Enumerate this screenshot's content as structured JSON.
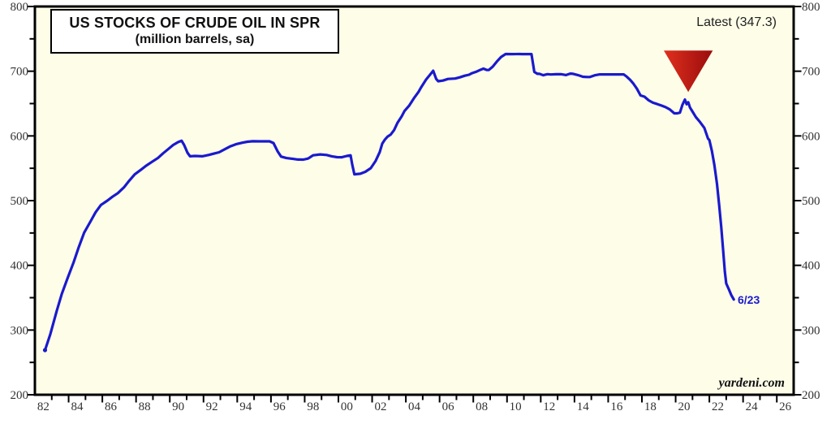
{
  "title": {
    "line1": "US STOCKS OF CRUDE OIL IN SPR",
    "line2": "(million barrels, sa)"
  },
  "annotations": {
    "latest_label": "Latest (347.3)",
    "endpoint_label": "6/23",
    "watermark": "yardeni.com"
  },
  "colors": {
    "line": "#1a1acd",
    "plot_background": "#fefde8",
    "frame": "#000000",
    "tick_label": "#333333",
    "marker_red_light": "#e0301e",
    "marker_red_dark": "#990c0c",
    "endpoint_label_color": "#1a1acd",
    "page_background": "#ffffff"
  },
  "chart_data": {
    "type": "line",
    "title": "US STOCKS OF CRUDE OIL IN SPR",
    "subtitle": "(million barrels, sa)",
    "ylabel": "million barrels",
    "latest_value": 347.3,
    "latest_date": "6/23",
    "x_axis": {
      "start_year": 1982,
      "end_year": 2027,
      "tick_every_years": 1,
      "label_every_years": 2,
      "labels": [
        "82",
        "84",
        "86",
        "88",
        "90",
        "92",
        "94",
        "96",
        "98",
        "00",
        "02",
        "04",
        "06",
        "08",
        "10",
        "12",
        "14",
        "16",
        "18",
        "20",
        "22",
        "24",
        "26"
      ]
    },
    "y_axis": {
      "min": 200,
      "max": 800,
      "major_step": 100,
      "minor_step": 50,
      "labels": [
        "200",
        "300",
        "400",
        "500",
        "600",
        "700",
        "800"
      ],
      "sides": "both"
    },
    "grid": false,
    "legend": false,
    "marker": {
      "type": "triangle-down",
      "center_year": 2020.75,
      "half_width_years": 1.45,
      "top_value": 732,
      "apex_value": 668
    },
    "series": [
      {
        "name": "US crude oil stocks in Strategic Petroleum Reserve",
        "points": [
          [
            1982.6,
            269
          ],
          [
            1982.92,
            294
          ],
          [
            1983.3,
            330
          ],
          [
            1983.6,
            356
          ],
          [
            1983.92,
            379
          ],
          [
            1984.3,
            405
          ],
          [
            1984.6,
            428
          ],
          [
            1984.92,
            450.5
          ],
          [
            1985.3,
            468
          ],
          [
            1985.6,
            482
          ],
          [
            1985.92,
            493.3
          ],
          [
            1986.3,
            500
          ],
          [
            1986.6,
            506
          ],
          [
            1986.92,
            511.6
          ],
          [
            1987.3,
            521
          ],
          [
            1987.6,
            531
          ],
          [
            1987.92,
            540.6
          ],
          [
            1988.3,
            548
          ],
          [
            1988.6,
            554
          ],
          [
            1988.92,
            559.5
          ],
          [
            1989.3,
            566
          ],
          [
            1989.6,
            573
          ],
          [
            1989.92,
            579.9
          ],
          [
            1990.2,
            586
          ],
          [
            1990.5,
            590.5
          ],
          [
            1990.7,
            592.5
          ],
          [
            1990.85,
            586
          ],
          [
            1991.05,
            574
          ],
          [
            1991.2,
            568.5
          ],
          [
            1991.5,
            569
          ],
          [
            1991.92,
            568.5
          ],
          [
            1992.3,
            570.5
          ],
          [
            1992.6,
            572.5
          ],
          [
            1992.92,
            574.7
          ],
          [
            1993.3,
            580
          ],
          [
            1993.6,
            584
          ],
          [
            1993.92,
            587.1
          ],
          [
            1994.3,
            589.5
          ],
          [
            1994.6,
            591
          ],
          [
            1994.92,
            591.7
          ],
          [
            1995.3,
            591.6
          ],
          [
            1995.6,
            591.6
          ],
          [
            1995.92,
            591.6
          ],
          [
            1996.15,
            589
          ],
          [
            1996.4,
            576
          ],
          [
            1996.6,
            568
          ],
          [
            1996.92,
            565.8
          ],
          [
            1997.3,
            564.5
          ],
          [
            1997.6,
            563.5
          ],
          [
            1997.92,
            563.4
          ],
          [
            1998.2,
            565
          ],
          [
            1998.5,
            570
          ],
          [
            1998.92,
            571.4
          ],
          [
            1999.3,
            570.5
          ],
          [
            1999.6,
            568.5
          ],
          [
            1999.92,
            567.2
          ],
          [
            2000.2,
            567
          ],
          [
            2000.5,
            569
          ],
          [
            2000.72,
            570
          ],
          [
            2000.82,
            556
          ],
          [
            2000.95,
            540.7
          ],
          [
            2001.3,
            541.5
          ],
          [
            2001.6,
            544.5
          ],
          [
            2001.92,
            550.2
          ],
          [
            2002.2,
            561
          ],
          [
            2002.45,
            575
          ],
          [
            2002.6,
            588
          ],
          [
            2002.75,
            594
          ],
          [
            2002.92,
            599.1
          ],
          [
            2003.1,
            602
          ],
          [
            2003.3,
            609
          ],
          [
            2003.5,
            620
          ],
          [
            2003.75,
            630
          ],
          [
            2003.92,
            638.4
          ],
          [
            2004.2,
            647
          ],
          [
            2004.5,
            659
          ],
          [
            2004.75,
            668
          ],
          [
            2004.92,
            675.6
          ],
          [
            2005.2,
            687
          ],
          [
            2005.45,
            695
          ],
          [
            2005.62,
            700.7
          ],
          [
            2005.8,
            688
          ],
          [
            2005.92,
            684.5
          ],
          [
            2006.2,
            685.5
          ],
          [
            2006.5,
            688
          ],
          [
            2006.92,
            688.6
          ],
          [
            2007.2,
            690.5
          ],
          [
            2007.5,
            693
          ],
          [
            2007.75,
            694.5
          ],
          [
            2007.92,
            696.9
          ],
          [
            2008.2,
            699.5
          ],
          [
            2008.45,
            702.5
          ],
          [
            2008.6,
            704
          ],
          [
            2008.8,
            702
          ],
          [
            2008.92,
            701.8
          ],
          [
            2009.15,
            707
          ],
          [
            2009.4,
            715
          ],
          [
            2009.65,
            722
          ],
          [
            2009.92,
            726.6
          ],
          [
            2010.3,
            726.5
          ],
          [
            2010.7,
            726.6
          ],
          [
            2010.92,
            726.5
          ],
          [
            2011.2,
            726.5
          ],
          [
            2011.45,
            726.5
          ],
          [
            2011.62,
            699
          ],
          [
            2011.8,
            695.9
          ],
          [
            2011.92,
            696
          ],
          [
            2012.15,
            693.8
          ],
          [
            2012.4,
            695.5
          ],
          [
            2012.6,
            694.9
          ],
          [
            2012.92,
            695.3
          ],
          [
            2013.2,
            695.5
          ],
          [
            2013.5,
            694
          ],
          [
            2013.75,
            696.3
          ],
          [
            2013.92,
            696
          ],
          [
            2014.2,
            694
          ],
          [
            2014.5,
            691.4
          ],
          [
            2014.75,
            691
          ],
          [
            2014.92,
            691
          ],
          [
            2015.2,
            693.7
          ],
          [
            2015.5,
            695.1
          ],
          [
            2015.92,
            695.1
          ],
          [
            2016.2,
            695.1
          ],
          [
            2016.5,
            695
          ],
          [
            2016.75,
            695.1
          ],
          [
            2016.92,
            695.1
          ],
          [
            2017.1,
            691.5
          ],
          [
            2017.3,
            686.6
          ],
          [
            2017.5,
            680.6
          ],
          [
            2017.7,
            673
          ],
          [
            2017.92,
            662.5
          ],
          [
            2018.15,
            660.7
          ],
          [
            2018.4,
            655
          ],
          [
            2018.65,
            651.4
          ],
          [
            2018.92,
            649.1
          ],
          [
            2019.15,
            647
          ],
          [
            2019.4,
            644.5
          ],
          [
            2019.65,
            641
          ],
          [
            2019.92,
            634.9
          ],
          [
            2020.1,
            634.9
          ],
          [
            2020.25,
            636
          ],
          [
            2020.4,
            648
          ],
          [
            2020.55,
            656.1
          ],
          [
            2020.65,
            649
          ],
          [
            2020.75,
            652
          ],
          [
            2020.85,
            644
          ],
          [
            2020.99,
            638.1
          ],
          [
            2021.2,
            629
          ],
          [
            2021.45,
            621.3
          ],
          [
            2021.7,
            612.5
          ],
          [
            2021.92,
            596
          ],
          [
            2022.0,
            593.7
          ],
          [
            2022.15,
            577
          ],
          [
            2022.3,
            555
          ],
          [
            2022.45,
            526
          ],
          [
            2022.58,
            493
          ],
          [
            2022.7,
            460
          ],
          [
            2022.82,
            423
          ],
          [
            2022.92,
            390
          ],
          [
            2023.0,
            372
          ],
          [
            2023.15,
            363.3
          ],
          [
            2023.3,
            354
          ],
          [
            2023.45,
            347.3
          ]
        ]
      }
    ]
  }
}
